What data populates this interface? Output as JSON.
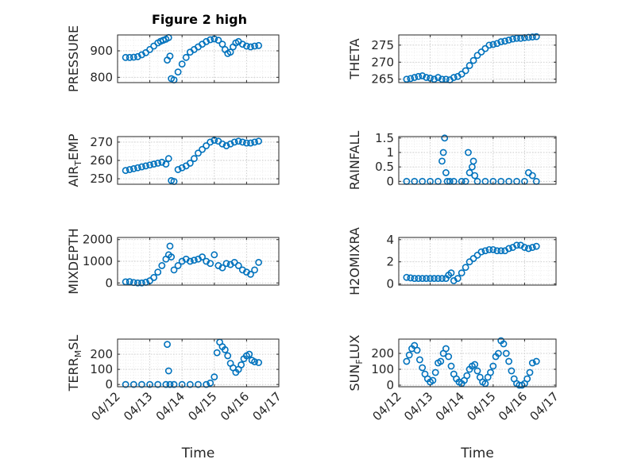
{
  "figure": {
    "title": "Figure 2 high"
  },
  "chart_data": [
    {
      "type": "scatter",
      "id": "pressure",
      "ylabel": "PRESSURE",
      "ylabel_sub": "",
      "ylim": [
        780,
        960
      ],
      "yticks": [
        800,
        900
      ],
      "xlim": [
        "04/12",
        "04/17"
      ],
      "xticks": [
        "04/12",
        "04/13",
        "04/14",
        "04/15",
        "04/16",
        "04/17"
      ],
      "x": [
        "04/12 06:00",
        "04/12 09:00",
        "04/12 12:00",
        "04/12 15:00",
        "04/12 18:00",
        "04/12 21:00",
        "04/13 00:00",
        "04/13 03:00",
        "04/13 06:00",
        "04/13 08:00",
        "04/13 10:00",
        "04/13 12:00",
        "04/13 13:00",
        "04/13 14:00",
        "04/13 15:00",
        "04/13 16:00",
        "04/13 18:00",
        "04/13 21:00",
        "04/14 00:00",
        "04/14 03:00",
        "04/14 06:00",
        "04/14 09:00",
        "04/14 12:00",
        "04/14 15:00",
        "04/14 18:00",
        "04/14 21:00",
        "04/15 00:00",
        "04/15 03:00",
        "04/15 06:00",
        "04/15 08:00",
        "04/15 10:00",
        "04/15 12:00",
        "04/15 14:00",
        "04/15 16:00",
        "04/15 18:00",
        "04/15 21:00",
        "04/16 00:00",
        "04/16 03:00",
        "04/16 06:00",
        "04/16 09:00"
      ],
      "y": [
        875,
        875,
        876,
        878,
        885,
        893,
        905,
        918,
        930,
        936,
        940,
        944,
        865,
        950,
        880,
        795,
        790,
        820,
        850,
        875,
        895,
        905,
        915,
        925,
        935,
        942,
        945,
        940,
        925,
        905,
        890,
        895,
        915,
        930,
        935,
        925,
        918,
        915,
        918,
        920
      ]
    },
    {
      "type": "scatter",
      "id": "theta",
      "ylabel": "THETA",
      "ylabel_sub": "",
      "ylim": [
        264,
        278
      ],
      "yticks": [
        265,
        270,
        275
      ],
      "xlim": [
        "04/12",
        "04/17"
      ],
      "xticks": [
        "04/12",
        "04/13",
        "04/14",
        "04/15",
        "04/16",
        "04/17"
      ],
      "x": [
        "04/12 06:00",
        "04/12 09:00",
        "04/12 12:00",
        "04/12 15:00",
        "04/12 18:00",
        "04/12 21:00",
        "04/13 00:00",
        "04/13 03:00",
        "04/13 06:00",
        "04/13 09:00",
        "04/13 12:00",
        "04/13 15:00",
        "04/13 18:00",
        "04/13 21:00",
        "04/14 00:00",
        "04/14 03:00",
        "04/14 06:00",
        "04/14 09:00",
        "04/14 12:00",
        "04/14 15:00",
        "04/14 18:00",
        "04/14 21:00",
        "04/15 00:00",
        "04/15 03:00",
        "04/15 06:00",
        "04/15 09:00",
        "04/15 12:00",
        "04/15 15:00",
        "04/15 18:00",
        "04/15 21:00",
        "04/16 00:00",
        "04/16 03:00",
        "04/16 06:00",
        "04/16 09:00"
      ],
      "y": [
        265,
        265.2,
        265.5,
        265.8,
        266,
        265.5,
        265.3,
        265,
        265.5,
        265,
        265,
        264.8,
        265.5,
        265.8,
        266.5,
        267.5,
        269,
        270.5,
        272,
        273,
        274,
        275,
        275.2,
        275.5,
        276,
        276.2,
        276.5,
        276.8,
        277,
        277,
        277.2,
        277.3,
        277.4,
        277.5
      ]
    },
    {
      "type": "scatter",
      "id": "air-temp",
      "ylabel": "AIR",
      "ylabel_sub": "T",
      "ylabel_rest": "EMP",
      "ylim": [
        247,
        273
      ],
      "yticks": [
        250,
        260,
        270
      ],
      "xlim": [
        "04/12",
        "04/17"
      ],
      "xticks": [
        "04/12",
        "04/13",
        "04/14",
        "04/15",
        "04/16",
        "04/17"
      ],
      "x": [
        "04/12 06:00",
        "04/12 09:00",
        "04/12 12:00",
        "04/12 15:00",
        "04/12 18:00",
        "04/12 21:00",
        "04/13 00:00",
        "04/13 03:00",
        "04/13 06:00",
        "04/13 09:00",
        "04/13 12:00",
        "04/13 14:00",
        "04/13 16:00",
        "04/13 18:00",
        "04/13 21:00",
        "04/14 00:00",
        "04/14 03:00",
        "04/14 06:00",
        "04/14 09:00",
        "04/14 12:00",
        "04/14 15:00",
        "04/14 18:00",
        "04/14 21:00",
        "04/15 00:00",
        "04/15 03:00",
        "04/15 06:00",
        "04/15 09:00",
        "04/15 12:00",
        "04/15 15:00",
        "04/15 18:00",
        "04/15 21:00",
        "04/16 00:00",
        "04/16 03:00",
        "04/16 06:00",
        "04/16 09:00"
      ],
      "y": [
        254.5,
        255,
        255.5,
        256,
        256.5,
        257,
        257.5,
        258,
        258.5,
        259,
        258,
        261,
        249,
        248.5,
        255,
        256,
        257,
        258.5,
        261,
        264,
        266,
        268,
        270,
        271,
        270.5,
        269,
        268,
        269,
        270,
        270.5,
        270,
        269.5,
        269.5,
        270,
        270.5
      ]
    },
    {
      "type": "scatter",
      "id": "rainfall",
      "ylabel": "RAINFALL",
      "ylabel_sub": "",
      "ylim": [
        -0.1,
        1.55
      ],
      "yticks": [
        0,
        0.5,
        1,
        1.5
      ],
      "xlim": [
        "04/12",
        "04/17"
      ],
      "xticks": [
        "04/12",
        "04/13",
        "04/14",
        "04/15",
        "04/16",
        "04/17"
      ],
      "x": [
        "04/12 06:00",
        "04/12 12:00",
        "04/12 18:00",
        "04/13 00:00",
        "04/13 06:00",
        "04/13 09:00",
        "04/13 10:00",
        "04/13 11:00",
        "04/13 12:00",
        "04/13 13:00",
        "04/13 15:00",
        "04/13 18:00",
        "04/14 00:00",
        "04/14 03:00",
        "04/14 05:00",
        "04/14 06:00",
        "04/14 08:00",
        "04/14 09:00",
        "04/14 10:00",
        "04/14 12:00",
        "04/14 18:00",
        "04/15 00:00",
        "04/15 06:00",
        "04/15 12:00",
        "04/15 18:00",
        "04/16 00:00",
        "04/16 03:00",
        "04/16 06:00",
        "04/16 09:00"
      ],
      "y": [
        0,
        0,
        0,
        0,
        0,
        0.7,
        1.0,
        1.5,
        0.3,
        0,
        0,
        0,
        0,
        0,
        1.0,
        0.3,
        0.5,
        0.7,
        0.2,
        0,
        0,
        0,
        0,
        0,
        0,
        0,
        0.3,
        0.2,
        0
      ]
    },
    {
      "type": "scatter",
      "id": "mixdepth",
      "ylabel": "MIXDEPTH",
      "ylabel_sub": "",
      "ylim": [
        -100,
        2100
      ],
      "yticks": [
        0,
        1000,
        2000
      ],
      "xlim": [
        "04/12",
        "04/17"
      ],
      "xticks": [
        "04/12",
        "04/13",
        "04/14",
        "04/15",
        "04/16",
        "04/17"
      ],
      "x": [
        "04/12 06:00",
        "04/12 09:00",
        "04/12 12:00",
        "04/12 15:00",
        "04/12 18:00",
        "04/12 21:00",
        "04/13 00:00",
        "04/13 03:00",
        "04/13 06:00",
        "04/13 09:00",
        "04/13 12:00",
        "04/13 14:00",
        "04/13 15:00",
        "04/13 16:00",
        "04/13 18:00",
        "04/13 21:00",
        "04/14 00:00",
        "04/14 03:00",
        "04/14 06:00",
        "04/14 09:00",
        "04/14 12:00",
        "04/14 15:00",
        "04/14 18:00",
        "04/14 21:00",
        "04/15 00:00",
        "04/15 03:00",
        "04/15 06:00",
        "04/15 09:00",
        "04/15 12:00",
        "04/15 15:00",
        "04/15 18:00",
        "04/15 21:00",
        "04/16 00:00",
        "04/16 03:00",
        "04/16 06:00",
        "04/16 09:00"
      ],
      "y": [
        50,
        60,
        20,
        0,
        0,
        30,
        100,
        250,
        500,
        800,
        1100,
        1300,
        1700,
        1200,
        600,
        800,
        1000,
        1100,
        1000,
        1050,
        1100,
        1200,
        1000,
        900,
        1300,
        800,
        700,
        900,
        850,
        950,
        800,
        600,
        500,
        400,
        600,
        950
      ]
    },
    {
      "type": "scatter",
      "id": "h2omixra",
      "ylabel": "H2OMIXRA",
      "ylabel_sub": "",
      "ylim": [
        -0.1,
        4.2
      ],
      "yticks": [
        0,
        2,
        4
      ],
      "xlim": [
        "04/12",
        "04/17"
      ],
      "xticks": [
        "04/12",
        "04/13",
        "04/14",
        "04/15",
        "04/16",
        "04/17"
      ],
      "x": [
        "04/12 06:00",
        "04/12 09:00",
        "04/12 12:00",
        "04/12 15:00",
        "04/12 18:00",
        "04/12 21:00",
        "04/13 00:00",
        "04/13 03:00",
        "04/13 06:00",
        "04/13 09:00",
        "04/13 12:00",
        "04/13 14:00",
        "04/13 16:00",
        "04/13 18:00",
        "04/13 21:00",
        "04/14 00:00",
        "04/14 03:00",
        "04/14 06:00",
        "04/14 09:00",
        "04/14 12:00",
        "04/14 15:00",
        "04/14 18:00",
        "04/14 21:00",
        "04/15 00:00",
        "04/15 03:00",
        "04/15 06:00",
        "04/15 09:00",
        "04/15 12:00",
        "04/15 15:00",
        "04/15 18:00",
        "04/15 21:00",
        "04/16 00:00",
        "04/16 03:00",
        "04/16 06:00",
        "04/16 09:00"
      ],
      "y": [
        0.6,
        0.55,
        0.5,
        0.5,
        0.5,
        0.5,
        0.5,
        0.5,
        0.5,
        0.5,
        0.5,
        0.8,
        1.0,
        0.3,
        0.5,
        1.0,
        1.5,
        2.0,
        2.3,
        2.6,
        2.9,
        3.0,
        3.1,
        3.1,
        3.0,
        3.0,
        3.0,
        3.2,
        3.3,
        3.5,
        3.5,
        3.3,
        3.2,
        3.3,
        3.4
      ]
    },
    {
      "type": "scatter",
      "id": "terr-msl",
      "ylabel": "TERR",
      "ylabel_sub": "M",
      "ylabel_rest": "SL",
      "ylim": [
        -15,
        300
      ],
      "yticks": [
        0,
        100,
        200
      ],
      "xlim": [
        "04/12",
        "04/17"
      ],
      "xticks": [
        "04/12",
        "04/13",
        "04/14",
        "04/15",
        "04/16",
        "04/17"
      ],
      "xlabel": "Time",
      "x": [
        "04/12 06:00",
        "04/12 12:00",
        "04/12 18:00",
        "04/13 00:00",
        "04/13 06:00",
        "04/13 12:00",
        "04/13 13:00",
        "04/13 14:00",
        "04/13 15:00",
        "04/13 18:00",
        "04/14 00:00",
        "04/14 06:00",
        "04/14 12:00",
        "04/14 18:00",
        "04/14 21:00",
        "04/15 00:00",
        "04/15 02:00",
        "04/15 04:00",
        "04/15 06:00",
        "04/15 08:00",
        "04/15 10:00",
        "04/15 12:00",
        "04/15 14:00",
        "04/15 16:00",
        "04/15 18:00",
        "04/15 20:00",
        "04/15 22:00",
        "04/16 00:00",
        "04/16 02:00",
        "04/16 04:00",
        "04/16 06:00",
        "04/16 09:00"
      ],
      "y": [
        0,
        0,
        0,
        0,
        0,
        0,
        265,
        90,
        0,
        0,
        0,
        0,
        0,
        0,
        10,
        50,
        210,
        280,
        250,
        230,
        190,
        140,
        110,
        80,
        100,
        130,
        170,
        190,
        200,
        160,
        150,
        145
      ]
    },
    {
      "type": "scatter",
      "id": "sun-flux",
      "ylabel": "SUN",
      "ylabel_sub": "F",
      "ylabel_rest": "LUX",
      "ylim": [
        -10,
        290
      ],
      "yticks": [
        0,
        100,
        200
      ],
      "xlim": [
        "04/12",
        "04/17"
      ],
      "xticks": [
        "04/12",
        "04/13",
        "04/14",
        "04/15",
        "04/16",
        "04/17"
      ],
      "xlabel": "Time",
      "x": [
        "04/12 06:00",
        "04/12 08:00",
        "04/12 10:00",
        "04/12 12:00",
        "04/12 14:00",
        "04/12 16:00",
        "04/12 18:00",
        "04/12 20:00",
        "04/12 22:00",
        "04/13 00:00",
        "04/13 02:00",
        "04/13 04:00",
        "04/13 06:00",
        "04/13 08:00",
        "04/13 10:00",
        "04/13 12:00",
        "04/13 14:00",
        "04/13 16:00",
        "04/13 18:00",
        "04/13 20:00",
        "04/13 22:00",
        "04/14 00:00",
        "04/14 02:00",
        "04/14 04:00",
        "04/14 06:00",
        "04/14 08:00",
        "04/14 10:00",
        "04/14 12:00",
        "04/14 14:00",
        "04/14 16:00",
        "04/14 18:00",
        "04/14 20:00",
        "04/14 22:00",
        "04/15 00:00",
        "04/15 02:00",
        "04/15 04:00",
        "04/15 06:00",
        "04/15 08:00",
        "04/15 10:00",
        "04/15 12:00",
        "04/15 14:00",
        "04/15 16:00",
        "04/15 18:00",
        "04/15 20:00",
        "04/15 22:00",
        "04/16 00:00",
        "04/16 02:00",
        "04/16 04:00",
        "04/16 06:00",
        "04/16 09:00"
      ],
      "y": [
        150,
        190,
        230,
        250,
        220,
        160,
        110,
        70,
        40,
        20,
        30,
        80,
        140,
        150,
        200,
        230,
        180,
        120,
        70,
        40,
        20,
        10,
        30,
        60,
        100,
        120,
        130,
        90,
        50,
        20,
        10,
        50,
        80,
        120,
        180,
        200,
        280,
        260,
        200,
        150,
        90,
        40,
        10,
        0,
        0,
        10,
        40,
        80,
        140,
        150
      ]
    }
  ]
}
